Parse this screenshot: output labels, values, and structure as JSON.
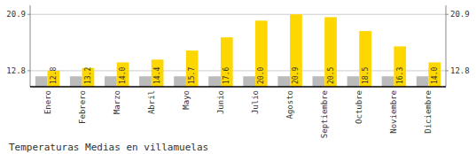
{
  "chart_data": {
    "type": "bar",
    "title": "Temperaturas Medias en villamuelas",
    "categories": [
      "Enero",
      "Febrero",
      "Marzo",
      "Abril",
      "Mayo",
      "Junio",
      "Julio",
      "Agosto",
      "Septiembre",
      "Octubre",
      "Noviembre",
      "Diciembre"
    ],
    "series": [
      {
        "color": "#BBBBBB",
        "values": [
          12.0,
          12.0,
          12.0,
          12.0,
          12.0,
          12.0,
          12.0,
          12.0,
          12.0,
          12.0,
          12.0,
          12.0
        ]
      },
      {
        "color": "#FFD700",
        "values": [
          12.8,
          13.2,
          14.0,
          14.4,
          15.7,
          17.6,
          20.0,
          20.9,
          20.5,
          18.5,
          16.3,
          14.0
        ],
        "value_labels": [
          "12.8",
          "13.2",
          "14.0",
          "14.4",
          "15.7",
          "17.6",
          "20.0",
          "20.9",
          "20.5",
          "18.5",
          "16.3",
          "14.0"
        ],
        "data_labels": true
      }
    ],
    "ylim": [
      10.5,
      22.2
    ],
    "yticks": [
      12.8,
      20.9
    ],
    "y2lim": [
      10.5,
      22.2
    ],
    "y2ticks": [
      12.8,
      20.9
    ],
    "grid": true
  }
}
